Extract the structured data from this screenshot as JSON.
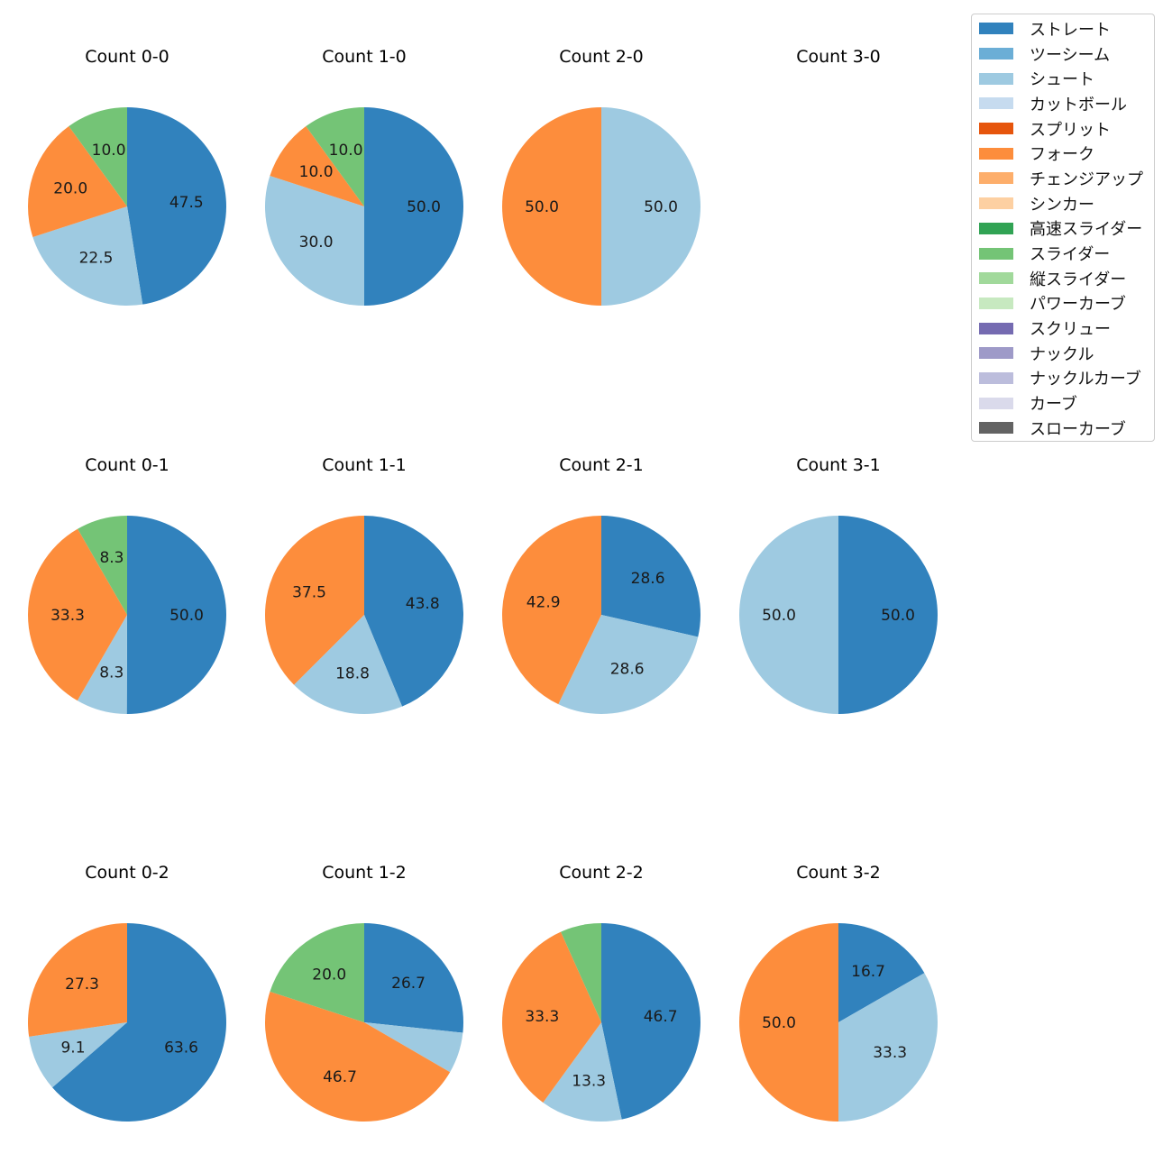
{
  "chart_data": {
    "type": "pie",
    "categories": [
      "ストレート",
      "ツーシーム",
      "シュート",
      "カットボール",
      "スプリット",
      "フォーク",
      "チェンジアップ",
      "シンカー",
      "高速スライダー",
      "スライダー",
      "縦スライダー",
      "パワーカーブ",
      "スクリュー",
      "ナックル",
      "ナックルカーブ",
      "カーブ",
      "スローカーブ"
    ],
    "colors": [
      "#3182bd",
      "#6baed6",
      "#9ecae1",
      "#c6dbef",
      "#e6550d",
      "#fd8d3c",
      "#fdae6b",
      "#fdd0a2",
      "#31a354",
      "#74c476",
      "#a1d99b",
      "#c7e9c0",
      "#756bb1",
      "#9e9ac8",
      "#bcbddc",
      "#dadaeb",
      "#636363"
    ],
    "legend_position": "top-right",
    "charts": [
      {
        "title": "Count 0-0",
        "slices": [
          {
            "category": "ストレート",
            "value": 47.5
          },
          {
            "category": "シュート",
            "value": 22.5
          },
          {
            "category": "フォーク",
            "value": 20.0
          },
          {
            "category": "スライダー",
            "value": 10.0
          }
        ]
      },
      {
        "title": "Count 1-0",
        "slices": [
          {
            "category": "ストレート",
            "value": 50.0
          },
          {
            "category": "シュート",
            "value": 30.0
          },
          {
            "category": "フォーク",
            "value": 10.0
          },
          {
            "category": "スライダー",
            "value": 10.0
          }
        ]
      },
      {
        "title": "Count 2-0",
        "slices": [
          {
            "category": "シュート",
            "value": 50.0
          },
          {
            "category": "フォーク",
            "value": 50.0
          }
        ]
      },
      {
        "title": "Count 3-0",
        "slices": []
      },
      {
        "title": "Count 0-1",
        "slices": [
          {
            "category": "ストレート",
            "value": 50.0
          },
          {
            "category": "シュート",
            "value": 8.3
          },
          {
            "category": "フォーク",
            "value": 33.3
          },
          {
            "category": "スライダー",
            "value": 8.3
          }
        ]
      },
      {
        "title": "Count 1-1",
        "slices": [
          {
            "category": "ストレート",
            "value": 43.8
          },
          {
            "category": "シュート",
            "value": 18.8
          },
          {
            "category": "フォーク",
            "value": 37.5
          }
        ]
      },
      {
        "title": "Count 2-1",
        "slices": [
          {
            "category": "ストレート",
            "value": 28.6
          },
          {
            "category": "シュート",
            "value": 28.6
          },
          {
            "category": "フォーク",
            "value": 42.9
          }
        ]
      },
      {
        "title": "Count 3-1",
        "slices": [
          {
            "category": "ストレート",
            "value": 50.0
          },
          {
            "category": "シュート",
            "value": 50.0
          }
        ]
      },
      {
        "title": "Count 0-2",
        "slices": [
          {
            "category": "ストレート",
            "value": 63.6
          },
          {
            "category": "シュート",
            "value": 9.1
          },
          {
            "category": "フォーク",
            "value": 27.3
          }
        ]
      },
      {
        "title": "Count 1-2",
        "slices": [
          {
            "category": "ストレート",
            "value": 26.7
          },
          {
            "category": "シュート",
            "value": 6.7,
            "hide_label": true
          },
          {
            "category": "フォーク",
            "value": 46.7
          },
          {
            "category": "スライダー",
            "value": 20.0
          }
        ]
      },
      {
        "title": "Count 2-2",
        "slices": [
          {
            "category": "ストレート",
            "value": 46.7
          },
          {
            "category": "シュート",
            "value": 13.3
          },
          {
            "category": "フォーク",
            "value": 33.3
          },
          {
            "category": "スライダー",
            "value": 6.7,
            "hide_label": true
          }
        ]
      },
      {
        "title": "Count 3-2",
        "slices": [
          {
            "category": "ストレート",
            "value": 16.7
          },
          {
            "category": "シュート",
            "value": 33.3
          },
          {
            "category": "フォーク",
            "value": 50.0
          }
        ]
      }
    ]
  }
}
